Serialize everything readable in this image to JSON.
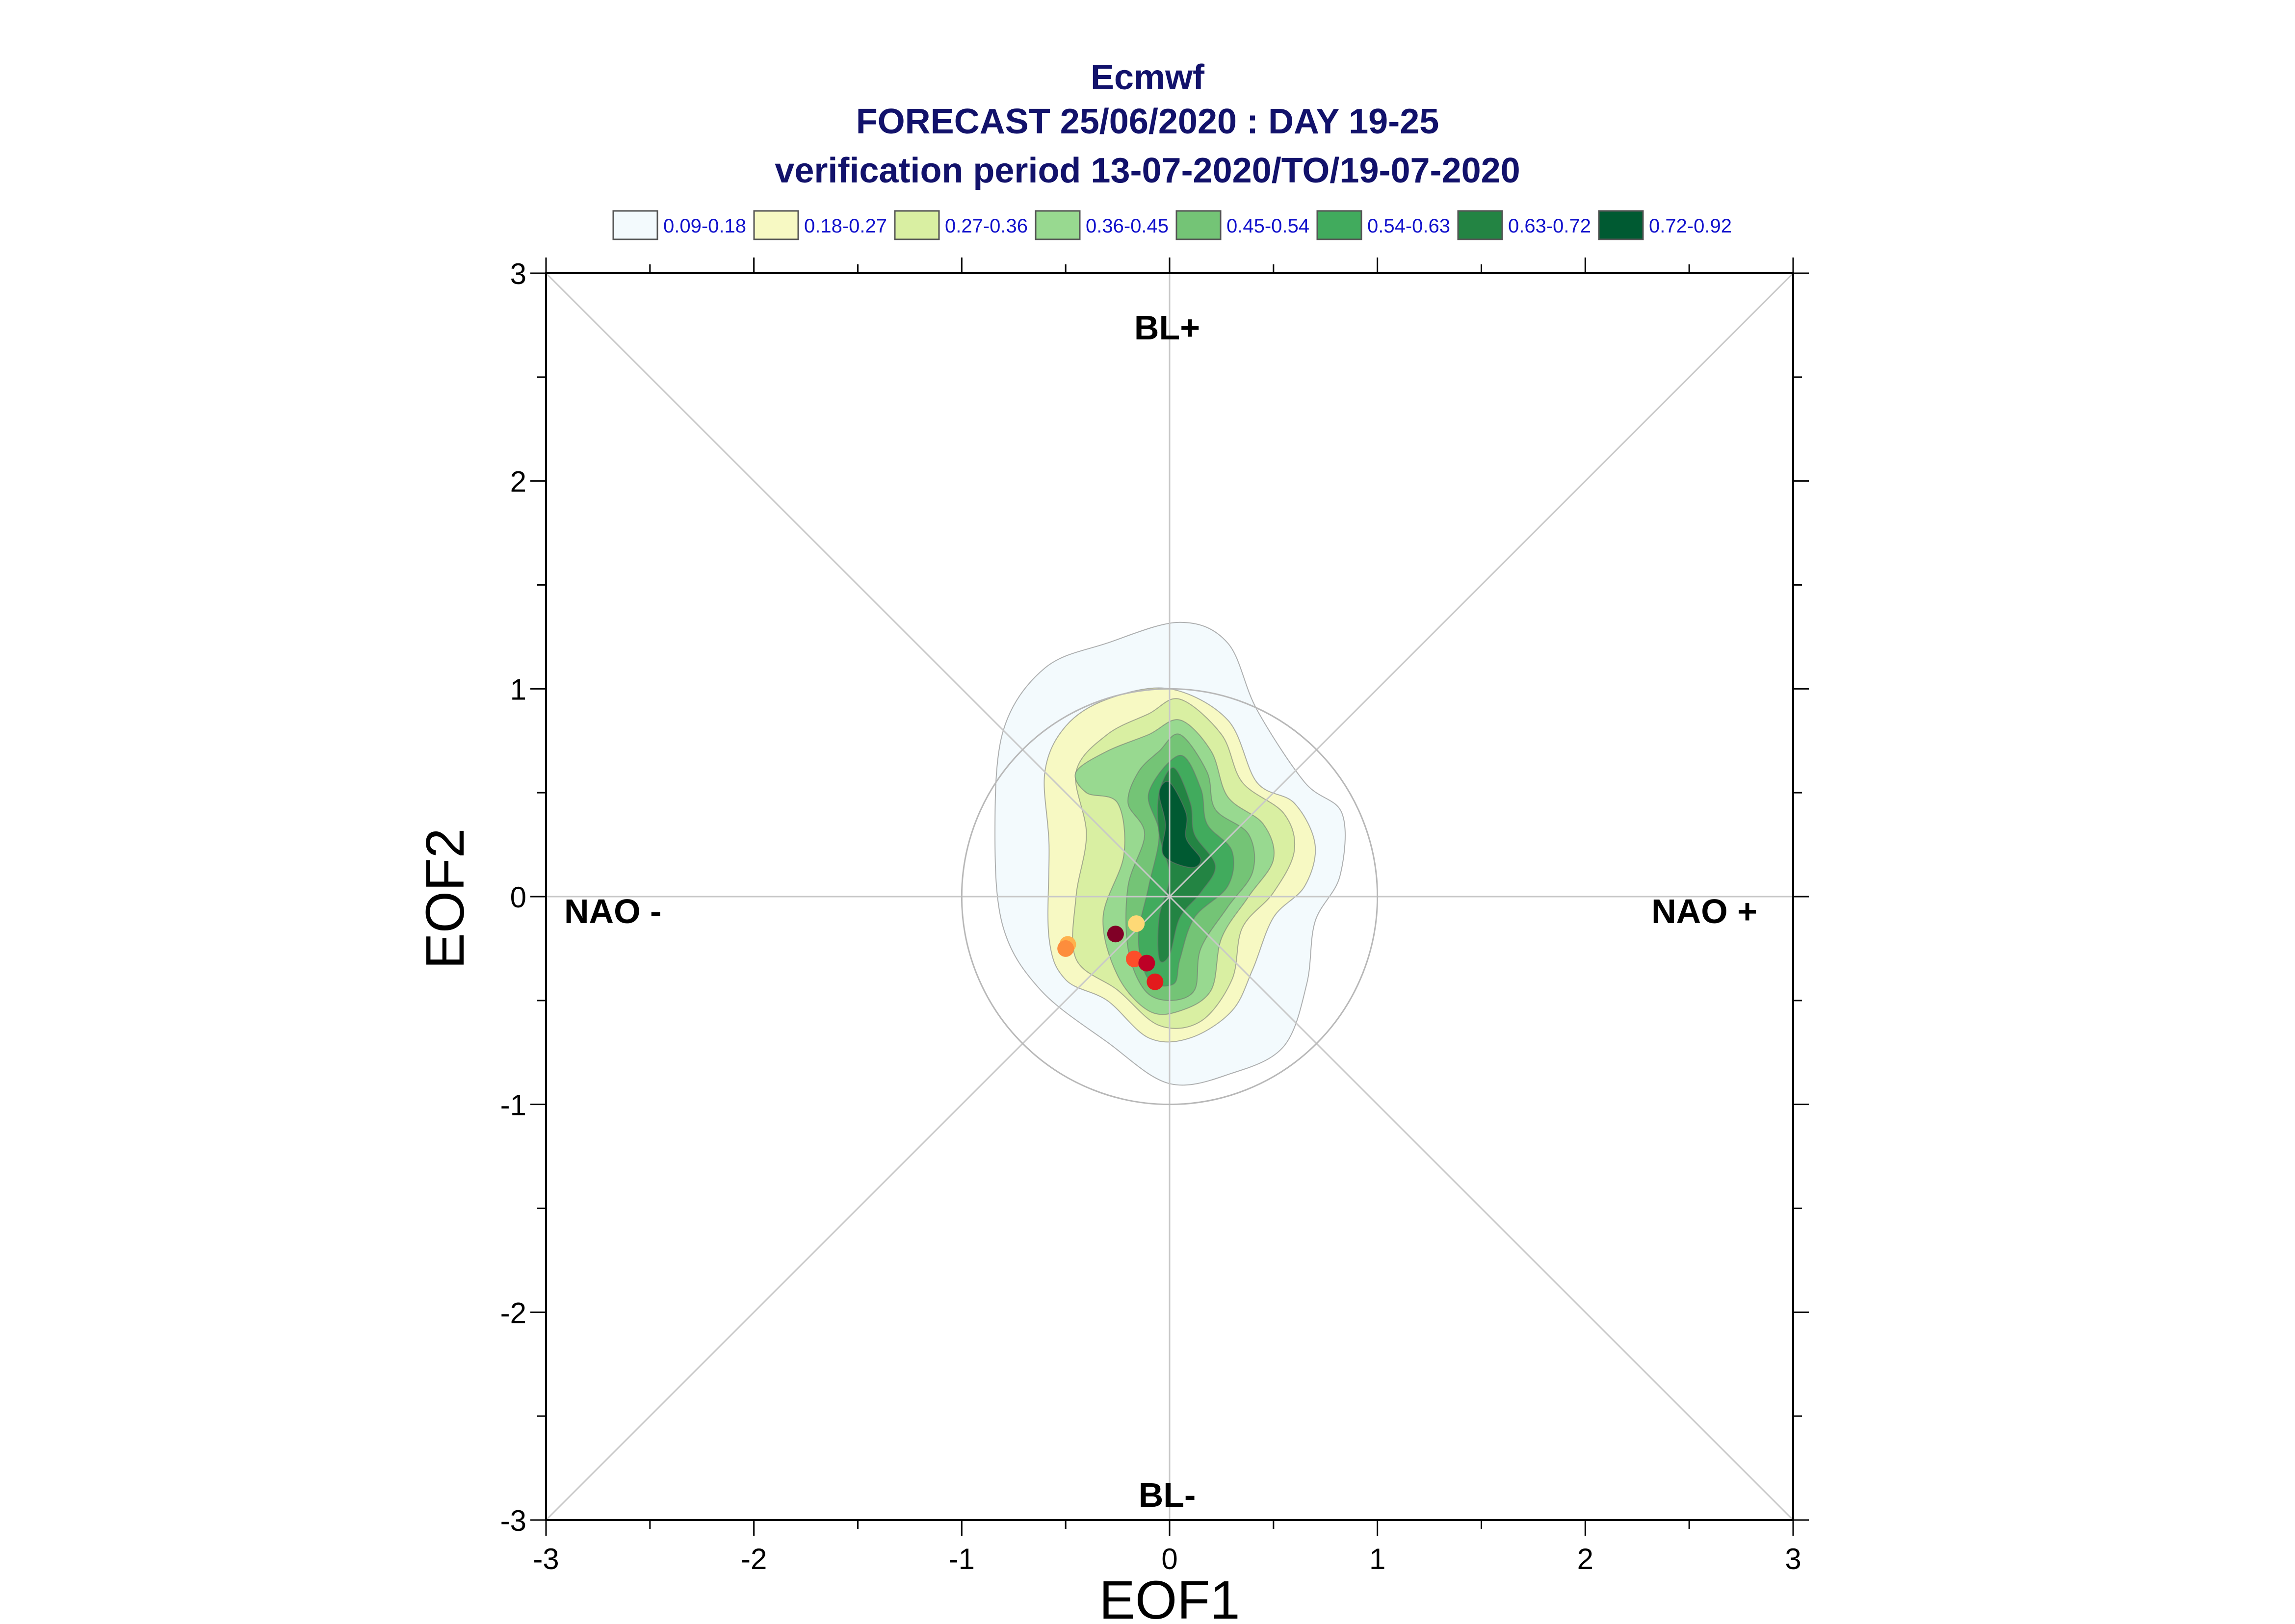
{
  "chart_data": {
    "type": "contour-scatter",
    "title_lines": [
      "Ecmwf",
      "FORECAST 25/06/2020 : DAY 19-25",
      "verification period 13-07-2020/TO/19-07-2020"
    ],
    "xlabel": "EOF1",
    "ylabel": "EOF2",
    "xlim": [
      -3,
      3
    ],
    "ylim": [
      -3,
      3
    ],
    "xticks": [
      "-3",
      "-2",
      "-1",
      "0",
      "1",
      "2",
      "3"
    ],
    "yticks": [
      "-3",
      "-2",
      "-1",
      "0",
      "1",
      "2",
      "3"
    ],
    "regime_labels": {
      "top": "BL+",
      "bottom": "BL-",
      "left": "NAO -",
      "right": "NAO +"
    },
    "unit_circle_radius": 1,
    "legend": [
      {
        "label": "0.09-0.18",
        "color": "#f3fafd"
      },
      {
        "label": "0.18-0.27",
        "color": "#f7f9c3"
      },
      {
        "label": "0.27-0.36",
        "color": "#d9efa2"
      },
      {
        "label": "0.36-0.45",
        "color": "#98d990"
      },
      {
        "label": "0.45-0.54",
        "color": "#74c476"
      },
      {
        "label": "0.54-0.63",
        "color": "#41ab5d"
      },
      {
        "label": "0.63-0.72",
        "color": "#238443"
      },
      {
        "label": "0.72-0.92",
        "color": "#005a32"
      }
    ],
    "contours": [
      {
        "level": "0.09-0.18",
        "points": [
          [
            0.05,
            1.32
          ],
          [
            0.28,
            1.22
          ],
          [
            0.42,
            0.9
          ],
          [
            0.65,
            0.55
          ],
          [
            0.83,
            0.4
          ],
          [
            0.82,
            0.1
          ],
          [
            0.7,
            -0.12
          ],
          [
            0.66,
            -0.42
          ],
          [
            0.55,
            -0.72
          ],
          [
            0.3,
            -0.85
          ],
          [
            0.0,
            -0.9
          ],
          [
            -0.3,
            -0.7
          ],
          [
            -0.62,
            -0.45
          ],
          [
            -0.8,
            -0.15
          ],
          [
            -0.84,
            0.3
          ],
          [
            -0.8,
            0.8
          ],
          [
            -0.6,
            1.1
          ],
          [
            -0.3,
            1.22
          ]
        ]
      },
      {
        "level": "0.18-0.27",
        "points": [
          [
            0.0,
            1.0
          ],
          [
            0.28,
            0.85
          ],
          [
            0.42,
            0.55
          ],
          [
            0.6,
            0.45
          ],
          [
            0.7,
            0.25
          ],
          [
            0.65,
            0.05
          ],
          [
            0.5,
            -0.1
          ],
          [
            0.4,
            -0.35
          ],
          [
            0.3,
            -0.55
          ],
          [
            0.1,
            -0.68
          ],
          [
            -0.1,
            -0.68
          ],
          [
            -0.3,
            -0.5
          ],
          [
            -0.5,
            -0.4
          ],
          [
            -0.58,
            -0.2
          ],
          [
            -0.58,
            0.25
          ],
          [
            -0.6,
            0.6
          ],
          [
            -0.5,
            0.82
          ],
          [
            -0.3,
            0.95
          ]
        ]
      },
      {
        "level": "0.27-0.36",
        "points": [
          [
            0.05,
            0.95
          ],
          [
            0.25,
            0.78
          ],
          [
            0.35,
            0.55
          ],
          [
            0.55,
            0.4
          ],
          [
            0.6,
            0.22
          ],
          [
            0.5,
            0.02
          ],
          [
            0.35,
            -0.15
          ],
          [
            0.3,
            -0.4
          ],
          [
            0.15,
            -0.6
          ],
          [
            -0.05,
            -0.62
          ],
          [
            -0.25,
            -0.45
          ],
          [
            -0.45,
            -0.3
          ],
          [
            -0.45,
            0.0
          ],
          [
            -0.4,
            0.3
          ],
          [
            -0.45,
            0.6
          ],
          [
            -0.3,
            0.78
          ],
          [
            -0.1,
            0.88
          ]
        ]
      },
      {
        "level": "0.36-0.45",
        "points": [
          [
            0.05,
            0.85
          ],
          [
            0.2,
            0.7
          ],
          [
            0.28,
            0.48
          ],
          [
            0.45,
            0.35
          ],
          [
            0.5,
            0.18
          ],
          [
            0.38,
            0.0
          ],
          [
            0.25,
            -0.2
          ],
          [
            0.2,
            -0.45
          ],
          [
            0.05,
            -0.55
          ],
          [
            -0.1,
            -0.55
          ],
          [
            -0.25,
            -0.38
          ],
          [
            -0.32,
            -0.1
          ],
          [
            -0.22,
            0.2
          ],
          [
            -0.25,
            0.45
          ],
          [
            -0.4,
            0.5
          ],
          [
            -0.45,
            0.6
          ],
          [
            -0.3,
            0.7
          ],
          [
            -0.1,
            0.78
          ]
        ]
      },
      {
        "level": "0.45-0.54",
        "points": [
          [
            0.05,
            0.78
          ],
          [
            0.18,
            0.6
          ],
          [
            0.22,
            0.42
          ],
          [
            0.38,
            0.3
          ],
          [
            0.4,
            0.12
          ],
          [
            0.28,
            -0.05
          ],
          [
            0.15,
            -0.25
          ],
          [
            0.12,
            -0.45
          ],
          [
            0.0,
            -0.5
          ],
          [
            -0.12,
            -0.45
          ],
          [
            -0.2,
            -0.25
          ],
          [
            -0.2,
            0.05
          ],
          [
            -0.12,
            0.3
          ],
          [
            -0.2,
            0.45
          ],
          [
            -0.15,
            0.6
          ],
          [
            -0.05,
            0.7
          ]
        ]
      },
      {
        "level": "0.54-0.63",
        "points": [
          [
            0.05,
            0.68
          ],
          [
            0.15,
            0.52
          ],
          [
            0.18,
            0.35
          ],
          [
            0.3,
            0.22
          ],
          [
            0.28,
            0.05
          ],
          [
            0.12,
            -0.1
          ],
          [
            0.05,
            -0.3
          ],
          [
            0.02,
            -0.42
          ],
          [
            -0.1,
            -0.4
          ],
          [
            -0.15,
            -0.2
          ],
          [
            -0.1,
            0.05
          ],
          [
            -0.05,
            0.3
          ],
          [
            -0.1,
            0.5
          ]
        ]
      },
      {
        "level": "0.63-0.72",
        "points": [
          [
            0.02,
            0.62
          ],
          [
            0.1,
            0.45
          ],
          [
            0.12,
            0.3
          ],
          [
            0.22,
            0.15
          ],
          [
            0.15,
            0.02
          ],
          [
            0.05,
            -0.1
          ],
          [
            0.0,
            -0.28
          ],
          [
            -0.05,
            -0.3
          ],
          [
            -0.05,
            -0.1
          ],
          [
            0.0,
            0.1
          ],
          [
            -0.05,
            0.3
          ],
          [
            -0.05,
            0.5
          ]
        ]
      },
      {
        "level": "0.72-0.92",
        "points": [
          [
            0.0,
            0.55
          ],
          [
            0.08,
            0.4
          ],
          [
            0.08,
            0.28
          ],
          [
            0.15,
            0.18
          ],
          [
            0.1,
            0.14
          ],
          [
            -0.03,
            0.2
          ],
          [
            -0.02,
            0.35
          ],
          [
            -0.05,
            0.5
          ]
        ]
      }
    ],
    "points": [
      {
        "x": -0.16,
        "y": -0.13,
        "color": "#fed976"
      },
      {
        "x": -0.26,
        "y": -0.18,
        "color": "#800026"
      },
      {
        "x": -0.49,
        "y": -0.23,
        "color": "#feb24c"
      },
      {
        "x": -0.5,
        "y": -0.25,
        "color": "#fd8d3c"
      },
      {
        "x": -0.17,
        "y": -0.3,
        "color": "#fc4e2a"
      },
      {
        "x": -0.11,
        "y": -0.32,
        "color": "#bd0026"
      },
      {
        "x": -0.07,
        "y": -0.41,
        "color": "#e31a1c"
      }
    ]
  }
}
